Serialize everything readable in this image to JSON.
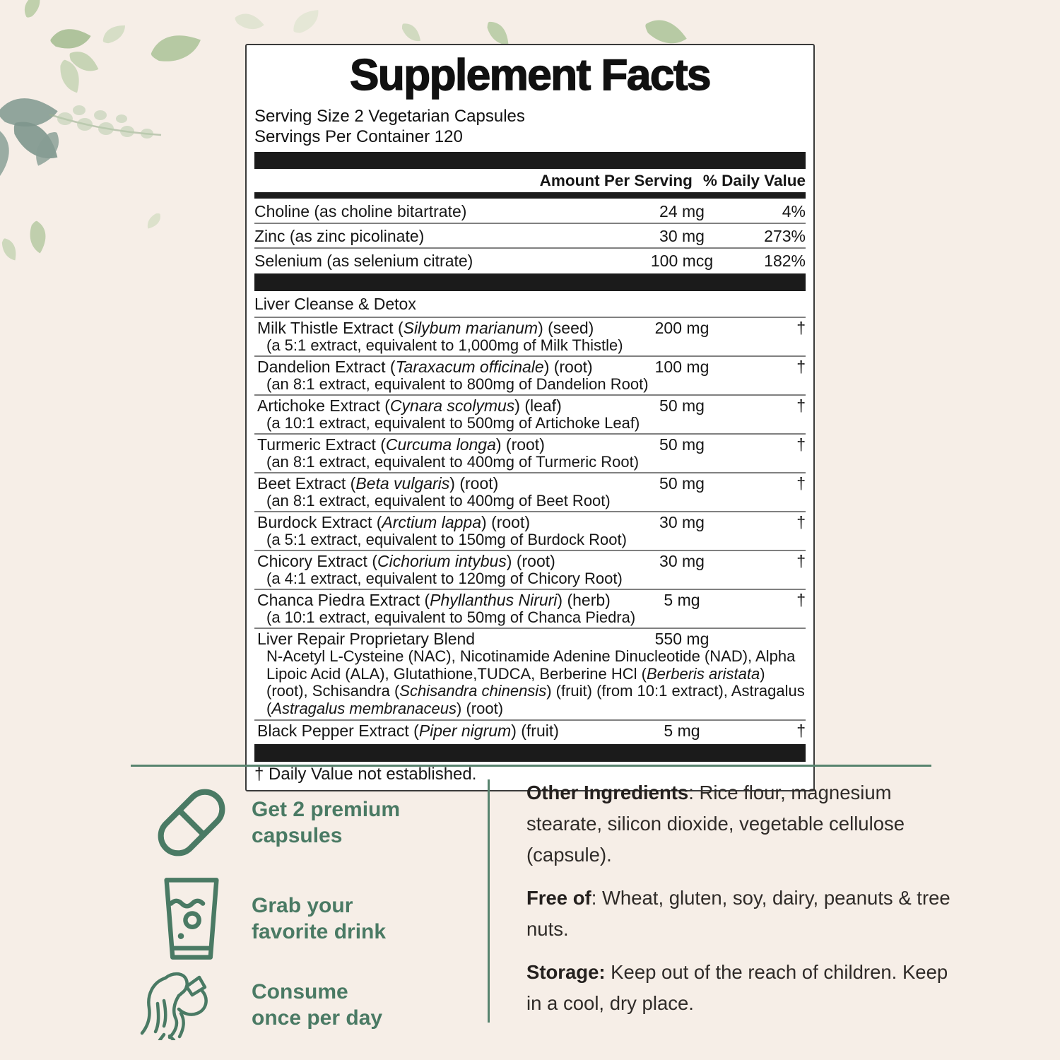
{
  "colors": {
    "background": "#f6eee7",
    "accent_green": "#4a7a64",
    "divider_green": "#57836e",
    "bar_black": "#1b1b1b",
    "panel_border": "#3a3a3a"
  },
  "label": {
    "title": "Supplement Facts",
    "serving_size": "Serving Size 2 Vegetarian Capsules",
    "servings_per_container": "Servings Per Container 120",
    "amount_header": "Amount Per Serving",
    "dv_header": "% Daily Value",
    "vitamins": [
      {
        "name": "Choline (as choline bitartrate)",
        "amount": "24 mg",
        "dv": "4%"
      },
      {
        "name": "Zinc (as zinc picolinate)",
        "amount": "30 mg",
        "dv": "273%"
      },
      {
        "name": "Selenium (as selenium citrate)",
        "amount": "100 mcg",
        "dv": "182%"
      }
    ],
    "section_title": "Liver Cleanse & Detox",
    "ingredients": [
      {
        "segments": [
          {
            "t": "Milk Thistle Extract ("
          },
          {
            "t": "Silybum marianum",
            "i": true
          },
          {
            "t": ") (seed)"
          }
        ],
        "sub": "(a 5:1 extract, equivalent to 1,000mg of Milk Thistle)",
        "amount": "200 mg",
        "dv": "†"
      },
      {
        "segments": [
          {
            "t": "Dandelion Extract ("
          },
          {
            "t": "Taraxacum officinale",
            "i": true
          },
          {
            "t": ") (root)"
          }
        ],
        "sub": "(an 8:1 extract, equivalent to 800mg of Dandelion Root)",
        "amount": "100 mg",
        "dv": "†"
      },
      {
        "segments": [
          {
            "t": "Artichoke Extract ("
          },
          {
            "t": "Cynara scolymus",
            "i": true
          },
          {
            "t": ") (leaf)"
          }
        ],
        "sub": "(a 10:1 extract, equivalent to 500mg of Artichoke Leaf)",
        "amount": "50 mg",
        "dv": "†"
      },
      {
        "segments": [
          {
            "t": "Turmeric Extract ("
          },
          {
            "t": "Curcuma longa",
            "i": true
          },
          {
            "t": ") (root)"
          }
        ],
        "sub": "(an 8:1 extract, equivalent to 400mg of Turmeric Root)",
        "amount": "50 mg",
        "dv": "†"
      },
      {
        "segments": [
          {
            "t": "Beet Extract ("
          },
          {
            "t": "Beta vulgaris",
            "i": true
          },
          {
            "t": ") (root)"
          }
        ],
        "sub": "(an 8:1 extract, equivalent to 400mg of Beet Root)",
        "amount": "50 mg",
        "dv": "†"
      },
      {
        "segments": [
          {
            "t": "Burdock Extract ("
          },
          {
            "t": "Arctium lappa",
            "i": true
          },
          {
            "t": ") (root)"
          }
        ],
        "sub": "(a 5:1 extract, equivalent to 150mg of Burdock Root)",
        "amount": "30 mg",
        "dv": "†"
      },
      {
        "segments": [
          {
            "t": "Chicory Extract ("
          },
          {
            "t": "Cichorium intybus",
            "i": true
          },
          {
            "t": ") (root)"
          }
        ],
        "sub": "(a 4:1 extract, equivalent to 120mg of Chicory Root)",
        "amount": "30 mg",
        "dv": "†"
      },
      {
        "segments": [
          {
            "t": "Chanca Piedra Extract ("
          },
          {
            "t": "Phyllanthus Niruri",
            "i": true
          },
          {
            "t": ") (herb)"
          }
        ],
        "sub": "(a 10:1 extract, equivalent to 50mg of Chanca Piedra)",
        "amount": "5 mg",
        "dv": "†"
      },
      {
        "segments": [
          {
            "t": "Liver Repair Proprietary Blend"
          }
        ],
        "amount": "550 mg",
        "dv": "",
        "desc": [
          {
            "t": "N-Acetyl L-Cysteine (NAC), Nicotinamide Adenine Dinucleotide (NAD), Alpha Lipoic Acid (ALA), Glutathione,TUDCA, Berberine HCl ("
          },
          {
            "t": "Berberis aristata",
            "i": true
          },
          {
            "t": ") (root), Schisandra ("
          },
          {
            "t": "Schisandra chinensis",
            "i": true
          },
          {
            "t": ") (fruit) (from 10:1 extract), Astragalus ("
          },
          {
            "t": "Astragalus membranaceus",
            "i": true
          },
          {
            "t": ") (root)"
          }
        ]
      },
      {
        "segments": [
          {
            "t": "Black Pepper Extract ("
          },
          {
            "t": "Piper nigrum",
            "i": true
          },
          {
            "t": ") (fruit)"
          }
        ],
        "amount": "5 mg",
        "dv": "†"
      }
    ],
    "footnote": "† Daily Value not established."
  },
  "steps": [
    {
      "icon": "capsule-icon",
      "lines": [
        "Get 2 premium",
        "capsules"
      ]
    },
    {
      "icon": "drink-glass-icon",
      "lines": [
        "Grab your",
        "favorite drink"
      ]
    },
    {
      "icon": "person-drinking-icon",
      "lines": [
        "Consume",
        "once per day"
      ]
    }
  ],
  "info": [
    {
      "label": "Other Ingredients",
      "text": ": Rice flour, magnesium stearate, silicon dioxide, vegetable cellulose (capsule)."
    },
    {
      "label": "Free of",
      "text": ": Wheat, gluten, soy, dairy, peanuts & tree nuts."
    },
    {
      "label": "Storage:",
      "text": " Keep out of the reach of children. Keep in a cool, dry place."
    }
  ]
}
